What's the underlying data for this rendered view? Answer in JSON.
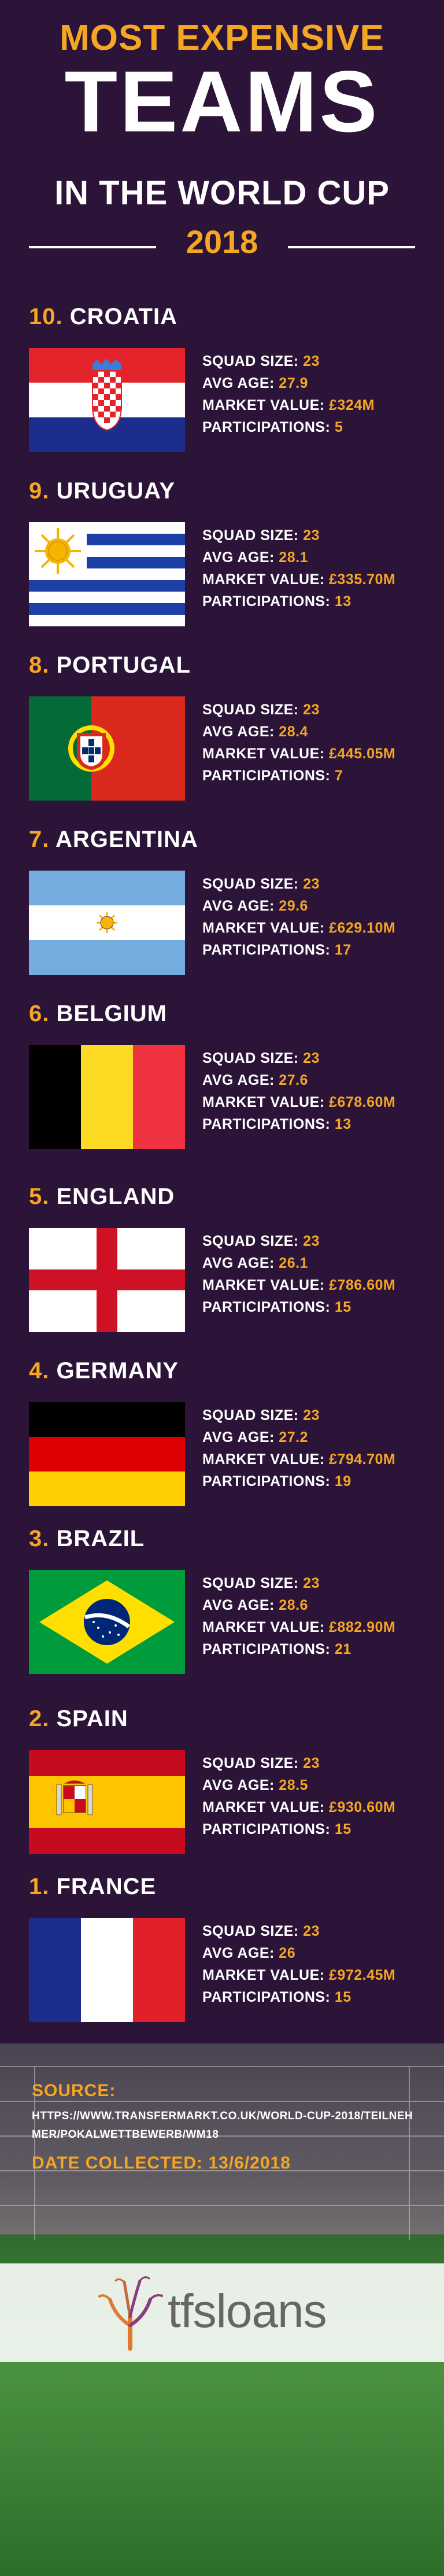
{
  "header": {
    "line1": "MOST EXPENSIVE",
    "line2": "TEAMS",
    "line3": "IN THE WORLD CUP",
    "year": "2018"
  },
  "labels": {
    "squad": "SQUAD SIZE:",
    "age": "AVG AGE:",
    "market": "MARKET VALUE:",
    "participations": "PARTICIPATIONS:"
  },
  "teams": [
    {
      "rank": "10.",
      "name": "CROATIA",
      "squad": "23",
      "age": "27.9",
      "market": "£324M",
      "participations": "5"
    },
    {
      "rank": "9.",
      "name": "URUGUAY",
      "squad": "23",
      "age": "28.1",
      "market": "£335.70M",
      "participations": "13"
    },
    {
      "rank": "8.",
      "name": "PORTUGAL",
      "squad": "23",
      "age": "28.4",
      "market": "£445.05M",
      "participations": "7"
    },
    {
      "rank": "7.",
      "name": "ARGENTINA",
      "squad": "23",
      "age": "29.6",
      "market": "£629.10M",
      "participations": "17"
    },
    {
      "rank": "6.",
      "name": "BELGIUM",
      "squad": "23",
      "age": "27.6",
      "market": "£678.60M",
      "participations": "13"
    },
    {
      "rank": "5.",
      "name": "ENGLAND",
      "squad": "23",
      "age": "26.1",
      "market": "£786.60M",
      "participations": "15"
    },
    {
      "rank": "4.",
      "name": "GERMANY",
      "squad": "23",
      "age": "27.2",
      "market": "£794.70M",
      "participations": "19"
    },
    {
      "rank": "3.",
      "name": "BRAZIL",
      "squad": "23",
      "age": "28.6",
      "market": "£882.90M",
      "participations": "21"
    },
    {
      "rank": "2.",
      "name": "SPAIN",
      "squad": "23",
      "age": "28.5",
      "market": "£930.60M",
      "participations": "15"
    },
    {
      "rank": "1.",
      "name": "FRANCE",
      "squad": "23",
      "age": "26",
      "market": "£972.45M",
      "participations": "15"
    }
  ],
  "footer": {
    "source_label": "SOURCE:",
    "source_url": "HTTPS://WWW.TRANSFERMARKT.CO.UK/WORLD-CUP-2018/TEILNEHMER/POKALWETTBEWERB/WM18",
    "date_label": "DATE COLLECTED:",
    "date_value": "13/6/2018",
    "logo_text": "tfsloans"
  },
  "colors": {
    "background": "#2b1438",
    "accent": "#f5a623",
    "text": "#ffffff"
  }
}
